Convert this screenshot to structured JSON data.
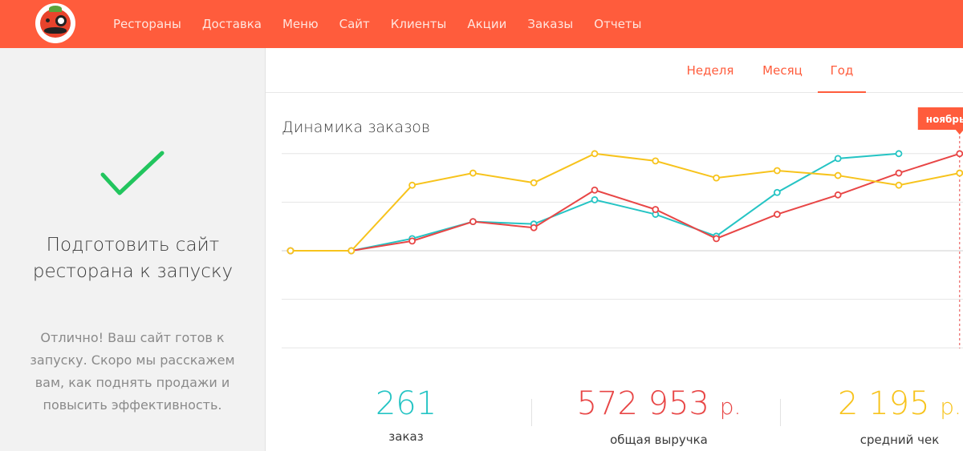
{
  "nav": {
    "items": [
      "Рестораны",
      "Доставка",
      "Меню",
      "Сайт",
      "Клиенты",
      "Акции",
      "Заказы",
      "Отчеты"
    ]
  },
  "sidebar": {
    "title": "Подготовить сайт ресторана к запуску",
    "text": "Отлично! Ваш сайт готов к запуску. Скоро мы расскажем вам, как поднять продажи и повысить эффективность."
  },
  "tabs": [
    "Неделя",
    "Месяц",
    "Год"
  ],
  "active_tab": "Год",
  "colors": {
    "brand": "#ff5c3c",
    "teal": "#25c4c4",
    "red": "#e84646",
    "yellow": "#f7c31c",
    "check": "#22c55e"
  },
  "chart_data": {
    "type": "line",
    "title": "Динамика заказов",
    "tooltip_label": "ноябрь",
    "ylim": [
      -4,
      4
    ],
    "grid": true,
    "series": [
      {
        "values": [
          0,
          0,
          0.5,
          1.2,
          1.1,
          2.1,
          1.5,
          0.6,
          2.4,
          3.8,
          4.0
        ],
        "color": "#25c4c4"
      },
      {
        "values": [
          0,
          0,
          0.4,
          1.2,
          0.95,
          2.5,
          1.7,
          0.5,
          1.5,
          2.3,
          3.2,
          4.0
        ],
        "color": "#e84646"
      },
      {
        "values": [
          0,
          0,
          2.7,
          3.2,
          2.8,
          4.0,
          3.7,
          3.0,
          3.3,
          3.1,
          2.7,
          3.2
        ],
        "color": "#f7c31c"
      }
    ]
  },
  "stats": [
    {
      "value": "261",
      "currency": "",
      "label": "заказ",
      "color": "#25c4c4"
    },
    {
      "value": "572 953",
      "currency": "р.",
      "label": "общая выручка",
      "color": "#e84646"
    },
    {
      "value": "2 195",
      "currency": "р.",
      "label": "средний чек",
      "color": "#f7c31c"
    }
  ]
}
